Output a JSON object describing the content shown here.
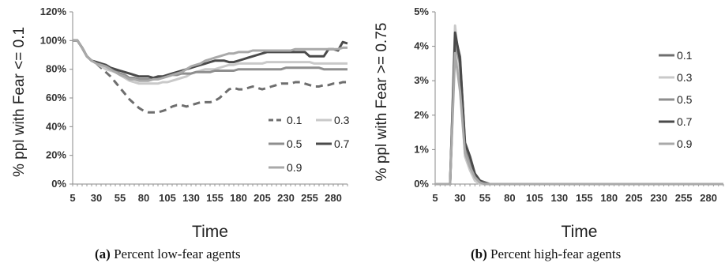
{
  "captions": [
    {
      "label": "(a)",
      "text": "Percent low-fear agents"
    },
    {
      "label": "(b)",
      "text": "Percent high-fear agents"
    }
  ],
  "chart_data": [
    {
      "type": "line",
      "ylabel": "% ppl with Fear <= 0.1",
      "xlabel": "Time",
      "x_ticks": [
        "5",
        "30",
        "55",
        "80",
        "105",
        "130",
        "155",
        "180",
        "205",
        "230",
        "255",
        "280"
      ],
      "y_ticks": [
        "0%",
        "20%",
        "40%",
        "60%",
        "80%",
        "100%",
        "120%"
      ],
      "ylim": [
        0,
        120
      ],
      "xlim": [
        5,
        295
      ],
      "grid": false,
      "legend_position": "bottom-right",
      "series": [
        {
          "name": "0.1",
          "color": "#6e6e6e",
          "dash": true,
          "x": [
            5,
            10,
            15,
            20,
            25,
            30,
            35,
            40,
            45,
            50,
            55,
            60,
            65,
            70,
            75,
            80,
            85,
            90,
            95,
            100,
            105,
            110,
            115,
            120,
            125,
            130,
            135,
            140,
            145,
            150,
            155,
            160,
            165,
            170,
            175,
            180,
            185,
            190,
            195,
            200,
            205,
            210,
            215,
            220,
            225,
            230,
            235,
            240,
            245,
            250,
            255,
            260,
            265,
            270,
            275,
            280,
            285,
            290,
            295
          ],
          "y": [
            100,
            100,
            95,
            89,
            86,
            84,
            81,
            78,
            75,
            71,
            67,
            63,
            59,
            56,
            53,
            51,
            50,
            50,
            50,
            51,
            52,
            54,
            55,
            55,
            54,
            55,
            56,
            57,
            57,
            57,
            58,
            60,
            63,
            66,
            67,
            66,
            66,
            67,
            68,
            67,
            66,
            67,
            68,
            69,
            70,
            70,
            70,
            71,
            71,
            70,
            69,
            68,
            68,
            69,
            69,
            70,
            70,
            71,
            71
          ]
        },
        {
          "name": "0.3",
          "color": "#c9c9c9",
          "dash": false,
          "x": [
            5,
            10,
            15,
            20,
            25,
            30,
            35,
            40,
            45,
            50,
            55,
            60,
            65,
            70,
            75,
            80,
            85,
            90,
            95,
            100,
            105,
            110,
            115,
            120,
            125,
            130,
            135,
            140,
            145,
            150,
            155,
            160,
            165,
            170,
            175,
            180,
            185,
            190,
            195,
            200,
            205,
            210,
            215,
            220,
            225,
            230,
            235,
            240,
            245,
            250,
            255,
            260,
            265,
            270,
            275,
            280,
            285,
            290,
            295
          ],
          "y": [
            100,
            100,
            95,
            89,
            86,
            84,
            82,
            80,
            79,
            78,
            76,
            74,
            72,
            71,
            70,
            70,
            70,
            70,
            70,
            71,
            71,
            72,
            73,
            74,
            75,
            77,
            78,
            79,
            80,
            80,
            80,
            81,
            82,
            83,
            83,
            84,
            84,
            84,
            84,
            84,
            84,
            85,
            85,
            85,
            85,
            85,
            85,
            85,
            85,
            85,
            85,
            84,
            84,
            84,
            84,
            84,
            84,
            84,
            84
          ]
        },
        {
          "name": "0.5",
          "color": "#8e8e8e",
          "dash": false,
          "x": [
            5,
            10,
            15,
            20,
            25,
            30,
            35,
            40,
            45,
            50,
            55,
            60,
            65,
            70,
            75,
            80,
            85,
            90,
            95,
            100,
            105,
            110,
            115,
            120,
            125,
            130,
            135,
            140,
            145,
            150,
            155,
            160,
            165,
            170,
            175,
            180,
            185,
            190,
            195,
            200,
            205,
            210,
            215,
            220,
            225,
            230,
            235,
            240,
            245,
            250,
            255,
            260,
            265,
            270,
            275,
            280,
            285,
            290,
            295
          ],
          "y": [
            100,
            100,
            95,
            89,
            86,
            85,
            84,
            82,
            80,
            79,
            77,
            76,
            74,
            74,
            73,
            73,
            73,
            73,
            74,
            74,
            75,
            76,
            76,
            77,
            77,
            77,
            78,
            78,
            78,
            78,
            79,
            79,
            79,
            79,
            79,
            80,
            80,
            80,
            80,
            80,
            80,
            80,
            80,
            80,
            80,
            81,
            81,
            81,
            81,
            81,
            81,
            81,
            81,
            80,
            80,
            80,
            80,
            80,
            80
          ]
        },
        {
          "name": "0.7",
          "color": "#4a4a4a",
          "dash": false,
          "x": [
            5,
            10,
            15,
            20,
            25,
            30,
            35,
            40,
            45,
            50,
            55,
            60,
            65,
            70,
            75,
            80,
            85,
            90,
            95,
            100,
            105,
            110,
            115,
            120,
            125,
            130,
            135,
            140,
            145,
            150,
            155,
            160,
            165,
            170,
            175,
            180,
            185,
            190,
            195,
            200,
            205,
            210,
            215,
            220,
            225,
            230,
            235,
            240,
            245,
            250,
            255,
            260,
            265,
            270,
            275,
            280,
            285,
            290,
            295
          ],
          "y": [
            100,
            100,
            95,
            89,
            86,
            85,
            84,
            83,
            81,
            80,
            79,
            78,
            77,
            76,
            75,
            75,
            75,
            74,
            75,
            75,
            76,
            77,
            78,
            79,
            80,
            81,
            82,
            83,
            84,
            85,
            86,
            86,
            86,
            85,
            85,
            86,
            87,
            88,
            89,
            90,
            91,
            92,
            92,
            92,
            92,
            92,
            92,
            92,
            92,
            92,
            89,
            89,
            89,
            89,
            94,
            94,
            93,
            99,
            98
          ]
        },
        {
          "name": "0.9",
          "color": "#a9a9a9",
          "dash": false,
          "x": [
            5,
            10,
            15,
            20,
            25,
            30,
            35,
            40,
            45,
            50,
            55,
            60,
            65,
            70,
            75,
            80,
            85,
            90,
            95,
            100,
            105,
            110,
            115,
            120,
            125,
            130,
            135,
            140,
            145,
            150,
            155,
            160,
            165,
            170,
            175,
            180,
            185,
            190,
            195,
            200,
            205,
            210,
            215,
            220,
            225,
            230,
            235,
            240,
            245,
            250,
            255,
            260,
            265,
            270,
            275,
            280,
            285,
            290,
            295
          ],
          "y": [
            100,
            100,
            95,
            89,
            86,
            84,
            83,
            82,
            80,
            78,
            76,
            75,
            73,
            73,
            72,
            72,
            72,
            73,
            73,
            74,
            75,
            76,
            77,
            78,
            80,
            82,
            83,
            84,
            86,
            87,
            88,
            89,
            90,
            91,
            91,
            92,
            92,
            92,
            93,
            93,
            93,
            93,
            93,
            93,
            93,
            93,
            93,
            94,
            94,
            94,
            94,
            94,
            94,
            94,
            94,
            94,
            94,
            95,
            95
          ]
        }
      ]
    },
    {
      "type": "line",
      "ylabel": "% ppl with Fear >= 0.75",
      "xlabel": "Time",
      "x_ticks": [
        "5",
        "30",
        "55",
        "80",
        "105",
        "130",
        "155",
        "180",
        "205",
        "230",
        "255",
        "280"
      ],
      "y_ticks": [
        "0%",
        "1%",
        "2%",
        "3%",
        "4%",
        "5%"
      ],
      "ylim": [
        0,
        5
      ],
      "xlim": [
        5,
        295
      ],
      "grid": false,
      "legend_position": "right",
      "series": [
        {
          "name": "0.1",
          "color": "#6e6e6e",
          "x": [
            5,
            10,
            15,
            20,
            25,
            30,
            35,
            40,
            45,
            50,
            55,
            60,
            65,
            70,
            295
          ],
          "y": [
            0,
            0,
            0,
            0,
            4.3,
            3.7,
            1.1,
            0.7,
            0.3,
            0.1,
            0.05,
            0,
            0,
            0,
            0
          ]
        },
        {
          "name": "0.3",
          "color": "#c9c9c9",
          "x": [
            5,
            10,
            15,
            20,
            25,
            30,
            35,
            40,
            45,
            50,
            55,
            60,
            65,
            70,
            295
          ],
          "y": [
            0,
            0,
            0,
            0,
            4.6,
            3.2,
            0.8,
            0.4,
            0.1,
            0,
            0,
            0,
            0,
            0,
            0
          ]
        },
        {
          "name": "0.5",
          "color": "#8e8e8e",
          "x": [
            5,
            10,
            15,
            20,
            25,
            30,
            35,
            40,
            45,
            50,
            55,
            60,
            65,
            70,
            295
          ],
          "y": [
            0,
            0,
            0,
            0,
            4.1,
            3.5,
            1.0,
            0.6,
            0.2,
            0.1,
            0,
            0,
            0,
            0,
            0
          ]
        },
        {
          "name": "0.7",
          "color": "#4a4a4a",
          "x": [
            5,
            10,
            15,
            20,
            25,
            30,
            35,
            40,
            45,
            50,
            55,
            60,
            65,
            70,
            295
          ],
          "y": [
            0,
            0,
            0,
            0,
            4.4,
            3.6,
            1.2,
            0.8,
            0.3,
            0.1,
            0,
            0,
            0,
            0,
            0
          ]
        },
        {
          "name": "0.9",
          "color": "#a9a9a9",
          "x": [
            5,
            10,
            15,
            20,
            25,
            30,
            35,
            40,
            45,
            50,
            55,
            60,
            65,
            70,
            295
          ],
          "y": [
            0,
            0,
            0,
            0,
            3.8,
            2.7,
            0.9,
            0.5,
            0.2,
            0.05,
            0,
            0,
            0,
            0,
            0
          ]
        }
      ]
    }
  ]
}
